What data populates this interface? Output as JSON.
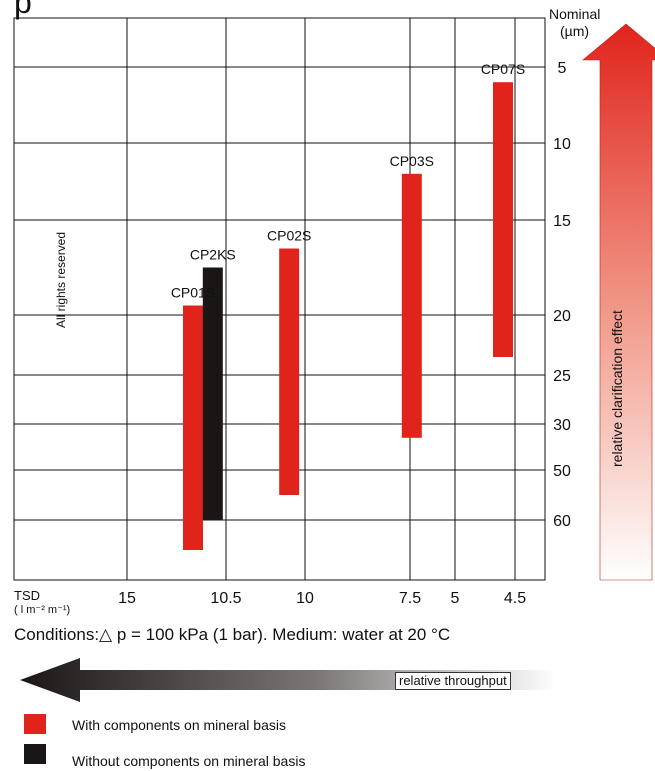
{
  "page": {
    "title_fragment": "p",
    "conditions": "Conditions:△ p = 100 kPa (1 bar). Medium: water at 20 °C",
    "watermark": "All rights reserved",
    "right_axis_title_line1": "Nominal",
    "right_axis_title_line2": "(µm)",
    "x_axis_title_line1": "TSD",
    "x_axis_title_line2": "( l m⁻² m⁻¹)",
    "arrow_up_label": "relative clarification effect",
    "arrow_left_label": "relative throughput",
    "colors": {
      "red": "#e0241c",
      "black": "#1b1616"
    }
  },
  "legend": [
    {
      "label": "With components on mineral basis",
      "color": "#e0241c"
    },
    {
      "label": "Without components on mineral basis",
      "color": "#1b1616"
    }
  ],
  "chart_data": {
    "type": "bar",
    "subtype": "floating-range",
    "x_axis": {
      "title": "TSD ( l m⁻² m⁻¹)",
      "tick_labels": [
        "15",
        "10.5",
        "10",
        "7.5",
        "5",
        "4.5"
      ],
      "direction": "decreasing to the right"
    },
    "y_axis": {
      "title": "Nominal (µm)",
      "position": "right",
      "inverted": true,
      "tick_labels": [
        "5",
        "10",
        "15",
        "20",
        "25",
        "30",
        "50",
        "60"
      ]
    },
    "grid": true,
    "series": [
      {
        "name": "With components on mineral basis",
        "color": "#e0241c"
      },
      {
        "name": "Without components on mineral basis",
        "color": "#1b1616"
      }
    ],
    "bars": [
      {
        "label": "CP01S",
        "tsd": 12.0,
        "from_um": 19.5,
        "to_um": 65,
        "series": "With components on mineral basis"
      },
      {
        "label": "CP2KS",
        "tsd": 11.1,
        "from_um": 17.5,
        "to_um": 60,
        "series": "Without components on mineral basis"
      },
      {
        "label": "CP02S",
        "tsd": 10.1,
        "from_um": 16.5,
        "to_um": 55,
        "series": "With components on mineral basis"
      },
      {
        "label": "CP03S",
        "tsd": 7.4,
        "from_um": 12,
        "to_um": 36,
        "series": "With components on mineral basis"
      },
      {
        "label": "CP07S",
        "tsd": 4.6,
        "from_um": 6,
        "to_um": 23.5,
        "series": "With components on mineral basis"
      }
    ]
  }
}
